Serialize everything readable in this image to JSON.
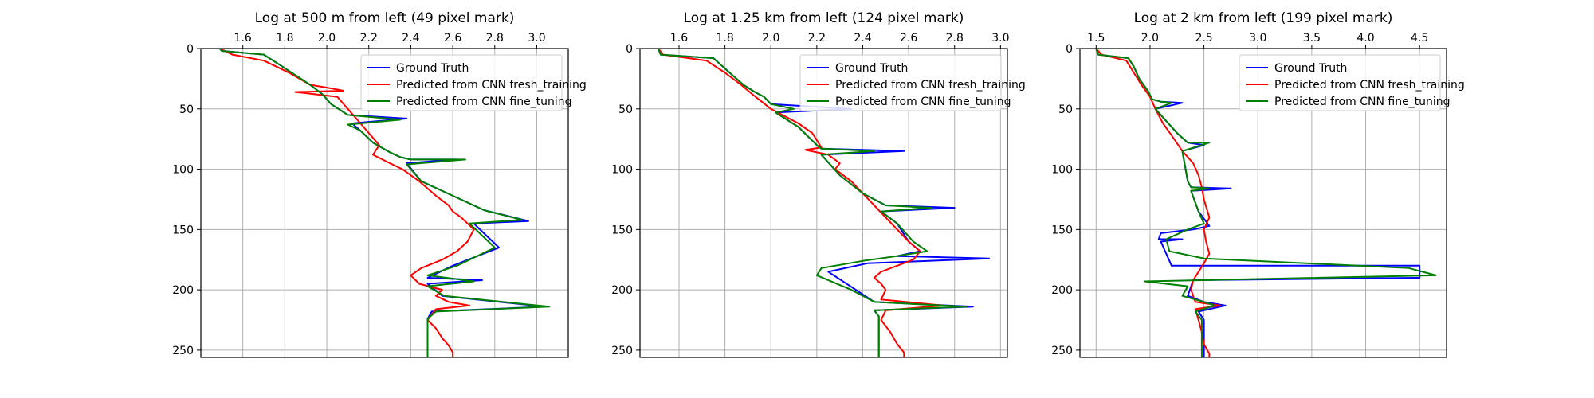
{
  "colors": {
    "ground_truth": "#0000ff",
    "fresh_training": "#ff0000",
    "fine_tuning": "#008000",
    "grid": "#b0b0b0",
    "axes": "#000000"
  },
  "chart_data": [
    {
      "type": "line",
      "title": "Log at 500 m from left (49 pixel mark)",
      "xlabel": "",
      "ylabel": "",
      "x_axis_position": "top",
      "y_inverted": true,
      "xlim": [
        1.4,
        3.15
      ],
      "ylim": [
        0,
        256
      ],
      "xticks": [
        1.6,
        1.8,
        2.0,
        2.2,
        2.4,
        2.6,
        2.8,
        3.0
      ],
      "xtick_labels": [
        "1.6",
        "1.8",
        "2.0",
        "2.2",
        "2.4",
        "2.6",
        "2.8",
        "3.0"
      ],
      "yticks": [
        0,
        50,
        100,
        150,
        200,
        250
      ],
      "ytick_labels": [
        "0",
        "50",
        "100",
        "150",
        "200",
        "250"
      ],
      "grid": true,
      "legend_position": "top-right",
      "series": [
        {
          "name": "Ground Truth",
          "color_key": "ground_truth",
          "x": [
            1.49,
            1.5,
            1.7,
            1.78,
            1.85,
            1.92,
            1.98,
            2.02,
            2.1,
            2.38,
            2.12,
            2.16,
            2.22,
            2.3,
            2.35,
            2.4,
            2.62,
            2.38,
            2.45,
            2.6,
            2.75,
            2.96,
            2.7,
            2.82,
            2.6,
            2.48,
            2.74,
            2.48,
            2.55,
            3.04,
            2.5,
            2.48,
            2.48,
            2.48,
            2.48
          ],
          "y": [
            0,
            2,
            5,
            14,
            22,
            30,
            38,
            46,
            55,
            58,
            62,
            68,
            78,
            86,
            90,
            92,
            92,
            95,
            110,
            122,
            134,
            143,
            145,
            165,
            180,
            190,
            192,
            195,
            205,
            214,
            218,
            224,
            230,
            245,
            256
          ]
        },
        {
          "name": "Predicted from CNN fresh_training",
          "color_key": "fresh_training",
          "x": [
            1.49,
            1.55,
            1.7,
            1.76,
            1.82,
            1.88,
            1.92,
            2.02,
            2.08,
            1.85,
            2.05,
            2.1,
            2.15,
            2.2,
            2.25,
            2.22,
            2.3,
            2.36,
            2.4,
            2.44,
            2.48,
            2.52,
            2.58,
            2.6,
            2.64,
            2.7,
            2.67,
            2.62,
            2.55,
            2.45,
            2.4,
            2.44,
            2.55,
            2.52,
            2.58,
            2.68,
            2.52,
            2.48,
            2.52,
            2.55,
            2.58,
            2.6,
            2.6
          ],
          "y": [
            0,
            5,
            10,
            15,
            20,
            26,
            30,
            33,
            35,
            36,
            40,
            50,
            60,
            70,
            80,
            88,
            95,
            100,
            105,
            110,
            116,
            122,
            130,
            135,
            140,
            150,
            160,
            168,
            175,
            182,
            188,
            195,
            200,
            205,
            210,
            213,
            216,
            225,
            232,
            240,
            246,
            252,
            256
          ]
        },
        {
          "name": "Predicted from CNN fine_tuning",
          "color_key": "fine_tuning",
          "x": [
            1.49,
            1.5,
            1.7,
            1.78,
            1.85,
            1.92,
            1.98,
            2.02,
            2.1,
            2.35,
            2.1,
            2.16,
            2.22,
            2.3,
            2.35,
            2.4,
            2.66,
            2.38,
            2.45,
            2.6,
            2.75,
            2.93,
            2.68,
            2.8,
            2.62,
            2.48,
            2.7,
            2.48,
            2.56,
            3.06,
            2.52,
            2.48,
            2.48,
            2.48,
            2.48
          ],
          "y": [
            0,
            2,
            5,
            14,
            22,
            30,
            38,
            46,
            55,
            59,
            63,
            68,
            78,
            86,
            90,
            92,
            92,
            96,
            110,
            122,
            134,
            142,
            145,
            165,
            180,
            188,
            193,
            197,
            205,
            214,
            218,
            224,
            230,
            245,
            256
          ]
        }
      ]
    },
    {
      "type": "line",
      "title": "Log at 1.25 km from left (124 pixel mark)",
      "xlabel": "",
      "ylabel": "",
      "x_axis_position": "top",
      "y_inverted": true,
      "xlim": [
        1.43,
        3.03
      ],
      "ylim": [
        0,
        256
      ],
      "xticks": [
        1.6,
        1.8,
        2.0,
        2.2,
        2.4,
        2.6,
        2.8,
        3.0
      ],
      "xtick_labels": [
        "1.6",
        "1.8",
        "2.0",
        "2.2",
        "2.4",
        "2.6",
        "2.8",
        "3.0"
      ],
      "yticks": [
        0,
        50,
        100,
        150,
        200,
        250
      ],
      "ytick_labels": [
        "0",
        "50",
        "100",
        "150",
        "200",
        "250"
      ],
      "grid": true,
      "legend_position": "top-right",
      "series": [
        {
          "name": "Ground Truth",
          "color_key": "ground_truth",
          "x": [
            1.51,
            1.52,
            1.75,
            1.82,
            1.88,
            1.93,
            1.97,
            2.0,
            2.35,
            2.02,
            2.12,
            2.2,
            2.22,
            2.58,
            2.22,
            2.3,
            2.4,
            2.5,
            2.8,
            2.48,
            2.55,
            2.6,
            2.65,
            2.55,
            2.95,
            2.42,
            2.25,
            2.45,
            2.88,
            2.45,
            2.47,
            2.47,
            2.47,
            2.47
          ],
          "y": [
            0,
            5,
            8,
            20,
            30,
            36,
            40,
            46,
            50,
            53,
            65,
            80,
            83,
            85,
            88,
            105,
            120,
            130,
            132,
            135,
            145,
            160,
            168,
            172,
            174,
            178,
            185,
            210,
            214,
            217,
            222,
            230,
            245,
            256
          ]
        },
        {
          "name": "Predicted from CNN fresh_training",
          "color_key": "fresh_training",
          "x": [
            1.51,
            1.53,
            1.72,
            1.8,
            1.87,
            1.92,
            1.96,
            2.0,
            2.05,
            2.12,
            2.18,
            2.2,
            2.22,
            2.15,
            2.25,
            2.3,
            2.28,
            2.35,
            2.4,
            2.45,
            2.5,
            2.55,
            2.6,
            2.65,
            2.62,
            2.55,
            2.48,
            2.45,
            2.48,
            2.5,
            2.48,
            2.75,
            2.5,
            2.48,
            2.52,
            2.55,
            2.58,
            2.58
          ],
          "y": [
            0,
            5,
            10,
            20,
            30,
            38,
            44,
            50,
            55,
            62,
            70,
            76,
            82,
            84,
            88,
            95,
            100,
            110,
            120,
            130,
            140,
            150,
            160,
            168,
            175,
            180,
            185,
            190,
            195,
            200,
            208,
            213,
            217,
            225,
            235,
            245,
            252,
            256
          ]
        },
        {
          "name": "Predicted from CNN fine_tuning",
          "color_key": "fine_tuning",
          "x": [
            1.51,
            1.52,
            1.75,
            1.82,
            1.88,
            1.93,
            1.97,
            2.0,
            2.1,
            2.02,
            2.12,
            2.2,
            2.22,
            2.45,
            2.22,
            2.3,
            2.4,
            2.5,
            2.7,
            2.48,
            2.55,
            2.62,
            2.68,
            2.55,
            2.4,
            2.22,
            2.2,
            2.3,
            2.35,
            2.45,
            2.85,
            2.45,
            2.47,
            2.47,
            2.47,
            2.47
          ],
          "y": [
            0,
            5,
            8,
            20,
            30,
            36,
            40,
            46,
            50,
            53,
            65,
            80,
            83,
            85,
            88,
            105,
            120,
            130,
            132,
            135,
            145,
            160,
            168,
            172,
            176,
            182,
            188,
            196,
            200,
            210,
            214,
            217,
            222,
            230,
            245,
            256
          ]
        }
      ]
    },
    {
      "type": "line",
      "title": "Log at 2 km from left (199 pixel mark)",
      "xlabel": "",
      "ylabel": "",
      "x_axis_position": "top",
      "y_inverted": true,
      "xlim": [
        1.35,
        4.75
      ],
      "ylim": [
        0,
        256
      ],
      "xticks": [
        1.5,
        2.0,
        2.5,
        3.0,
        3.5,
        4.0,
        4.5
      ],
      "xtick_labels": [
        "1.5",
        "2.0",
        "2.5",
        "3.0",
        "3.5",
        "4.0",
        "4.5"
      ],
      "yticks": [
        0,
        50,
        100,
        150,
        200,
        250
      ],
      "ytick_labels": [
        "0",
        "50",
        "100",
        "150",
        "200",
        "250"
      ],
      "grid": true,
      "legend_position": "top-right",
      "series": [
        {
          "name": "Ground Truth",
          "color_key": "ground_truth",
          "x": [
            1.5,
            1.52,
            1.8,
            1.85,
            1.9,
            1.98,
            2.02,
            2.1,
            2.3,
            2.05,
            2.15,
            2.25,
            2.35,
            2.5,
            2.3,
            2.35,
            2.38,
            2.75,
            2.38,
            2.45,
            2.55,
            2.4,
            2.1,
            2.08,
            2.3,
            2.1,
            2.2,
            4.5,
            4.5,
            2.4,
            2.35,
            2.5,
            2.7,
            2.45,
            2.5,
            2.5,
            2.5,
            2.5
          ],
          "y": [
            0,
            5,
            8,
            15,
            25,
            35,
            42,
            44,
            45,
            50,
            60,
            70,
            78,
            80,
            85,
            110,
            115,
            116,
            118,
            135,
            147,
            150,
            153,
            158,
            158,
            160,
            180,
            180,
            190,
            192,
            205,
            210,
            213,
            218,
            225,
            235,
            245,
            256
          ]
        },
        {
          "name": "Predicted from CNN fresh_training",
          "color_key": "fresh_training",
          "x": [
            1.5,
            1.55,
            1.78,
            1.85,
            1.92,
            2.0,
            2.05,
            2.12,
            2.2,
            2.3,
            2.4,
            2.45,
            2.48,
            2.5,
            2.55,
            2.5,
            2.52,
            2.55,
            2.5,
            2.45,
            2.4,
            2.38,
            2.4,
            2.42,
            2.65,
            2.42,
            2.45,
            2.48,
            2.5,
            2.55,
            2.55
          ],
          "y": [
            0,
            5,
            10,
            20,
            30,
            40,
            50,
            62,
            72,
            85,
            95,
            105,
            115,
            125,
            140,
            150,
            160,
            170,
            178,
            185,
            192,
            200,
            205,
            210,
            213,
            216,
            225,
            235,
            245,
            253,
            256
          ]
        },
        {
          "name": "Predicted from CNN fine_tuning",
          "color_key": "fine_tuning",
          "x": [
            1.5,
            1.52,
            1.8,
            1.85,
            1.9,
            1.98,
            2.02,
            2.1,
            2.2,
            2.05,
            2.15,
            2.25,
            2.35,
            2.55,
            2.3,
            2.35,
            2.38,
            2.55,
            2.38,
            2.45,
            2.5,
            2.35,
            2.15,
            2.18,
            2.5,
            4.4,
            4.65,
            1.95,
            2.35,
            2.3,
            2.5,
            2.6,
            2.42,
            2.48,
            2.48,
            2.48,
            2.48
          ],
          "y": [
            0,
            5,
            8,
            15,
            25,
            35,
            42,
            44,
            45,
            50,
            60,
            70,
            78,
            78,
            85,
            110,
            115,
            116,
            118,
            135,
            145,
            150,
            158,
            168,
            174,
            182,
            188,
            193,
            197,
            205,
            210,
            213,
            218,
            225,
            235,
            245,
            256
          ]
        }
      ]
    }
  ]
}
